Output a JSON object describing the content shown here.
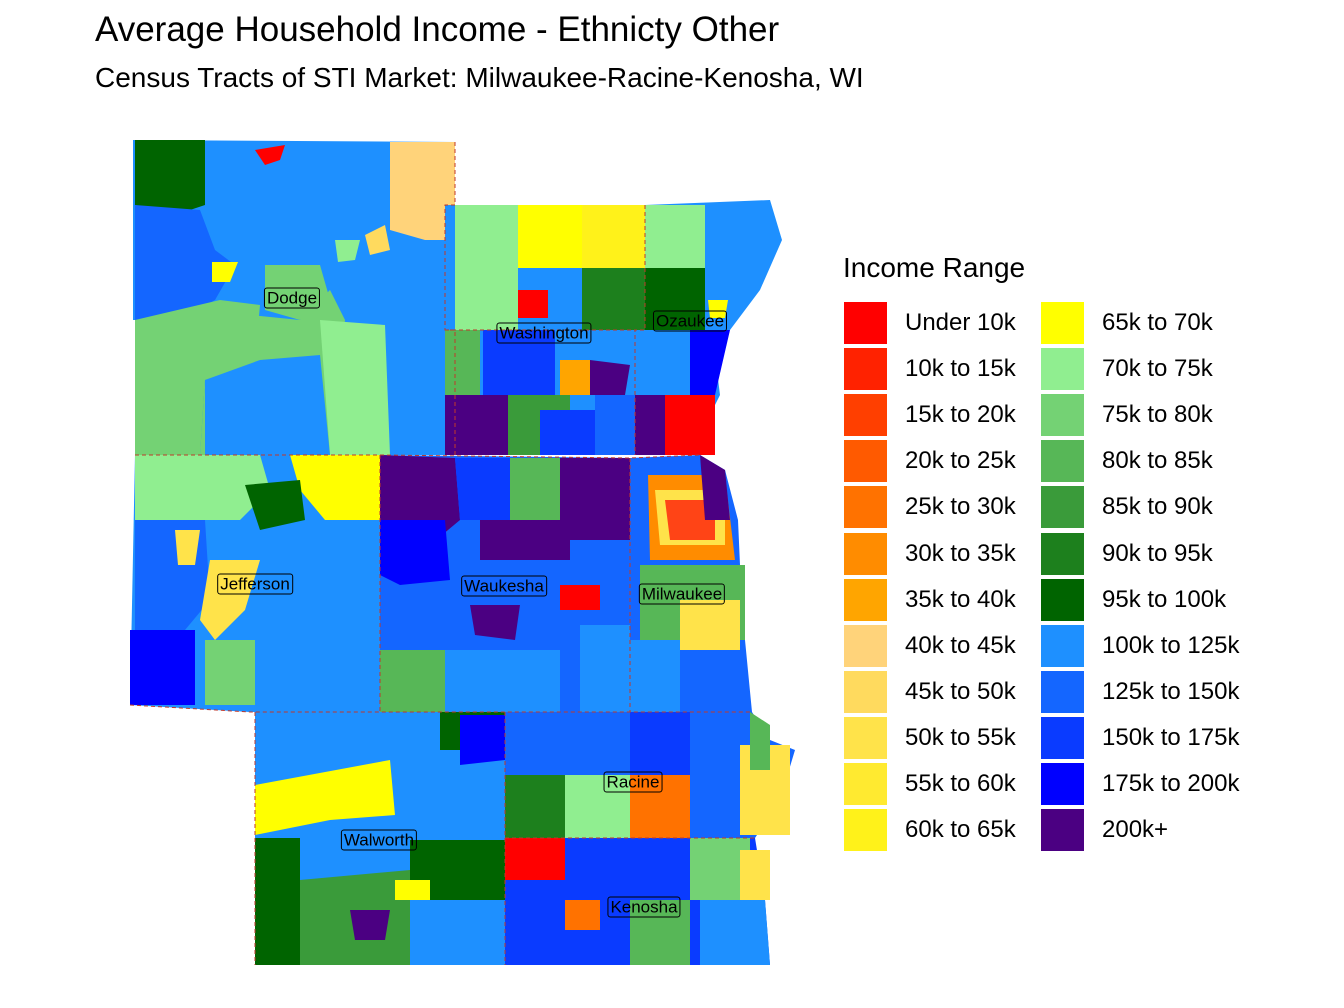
{
  "title": "Average Household Income - Ethnicty Other",
  "subtitle": "Census Tracts of STI Market: Milwaukee-Racine-Kenosha, WI",
  "legend": {
    "title": "Income Range",
    "items": [
      {
        "label": "Under 10k",
        "color": "#FF0000"
      },
      {
        "label": "10k to 15k",
        "color": "#FF2200"
      },
      {
        "label": "15k to 20k",
        "color": "#FF3F00"
      },
      {
        "label": "20k to 25k",
        "color": "#FF5A00"
      },
      {
        "label": "25k to 30k",
        "color": "#FF7200"
      },
      {
        "label": "30k to 35k",
        "color": "#FF8C00"
      },
      {
        "label": "35k to 40k",
        "color": "#FFA500"
      },
      {
        "label": "40k to 45k",
        "color": "#FFD37A"
      },
      {
        "label": "45k to 50k",
        "color": "#FFDA5E"
      },
      {
        "label": "50k to 55k",
        "color": "#FFE34A"
      },
      {
        "label": "55k to 60k",
        "color": "#FFEA30"
      },
      {
        "label": "60k to 65k",
        "color": "#FFF21A"
      },
      {
        "label": "65k to 70k",
        "color": "#FFFF00"
      },
      {
        "label": "70k to 75k",
        "color": "#90EE90"
      },
      {
        "label": "75k to 80k",
        "color": "#74D274"
      },
      {
        "label": "80k to 85k",
        "color": "#57B757"
      },
      {
        "label": "85k to 90k",
        "color": "#3A9B3A"
      },
      {
        "label": "90k to 95k",
        "color": "#1D801D"
      },
      {
        "label": "95k to 100k",
        "color": "#006400"
      },
      {
        "label": "100k to 125k",
        "color": "#1E90FF"
      },
      {
        "label": "125k to 150k",
        "color": "#1466FF"
      },
      {
        "label": "150k to 175k",
        "color": "#0A3BFF"
      },
      {
        "label": "175k to 200k",
        "color": "#0000FF"
      },
      {
        "label": "200k+",
        "color": "#4B0082"
      }
    ]
  },
  "counties": [
    "Dodge",
    "Washington",
    "Ozaukee",
    "Jefferson",
    "Waukesha",
    "Milwaukee",
    "Racine",
    "Walworth",
    "Kenosha"
  ]
}
